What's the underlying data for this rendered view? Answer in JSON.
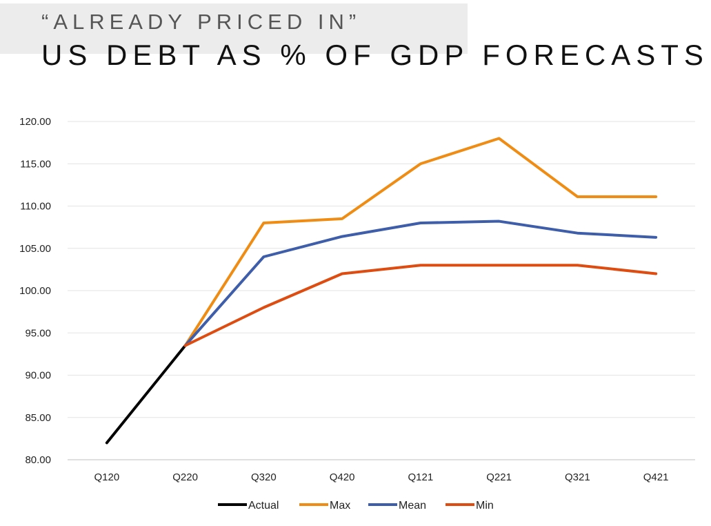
{
  "header": {
    "subtitle": "“ALREADY PRICED IN”",
    "title": "US DEBT AS % OF GDP FORECASTS"
  },
  "chart_data": {
    "type": "line",
    "title": "US DEBT AS % OF GDP FORECASTS",
    "subtitle": "“ALREADY PRICED IN”",
    "xlabel": "",
    "ylabel": "",
    "categories": [
      "Q120",
      "Q220",
      "Q320",
      "Q420",
      "Q121",
      "Q221",
      "Q321",
      "Q421"
    ],
    "ylim": [
      80,
      120
    ],
    "yticks": [
      "80.00",
      "85.00",
      "90.00",
      "95.00",
      "100.00",
      "105.00",
      "110.00",
      "115.00",
      "120.00"
    ],
    "grid": true,
    "legend": "bottom",
    "series": [
      {
        "name": "Actual",
        "color": "#000000",
        "values": [
          82.0,
          93.5,
          null,
          null,
          null,
          null,
          null,
          null
        ]
      },
      {
        "name": "Max",
        "color": "#ee8c14",
        "values": [
          null,
          93.5,
          108.0,
          108.5,
          115.0,
          118.0,
          111.1,
          111.1
        ]
      },
      {
        "name": "Mean",
        "color": "#3f5ea9",
        "values": [
          null,
          93.5,
          104.0,
          106.4,
          108.0,
          108.2,
          106.8,
          106.3
        ]
      },
      {
        "name": "Min",
        "color": "#dd4c10",
        "values": [
          null,
          93.5,
          98.0,
          102.0,
          103.0,
          103.0,
          103.0,
          102.0
        ]
      }
    ]
  }
}
